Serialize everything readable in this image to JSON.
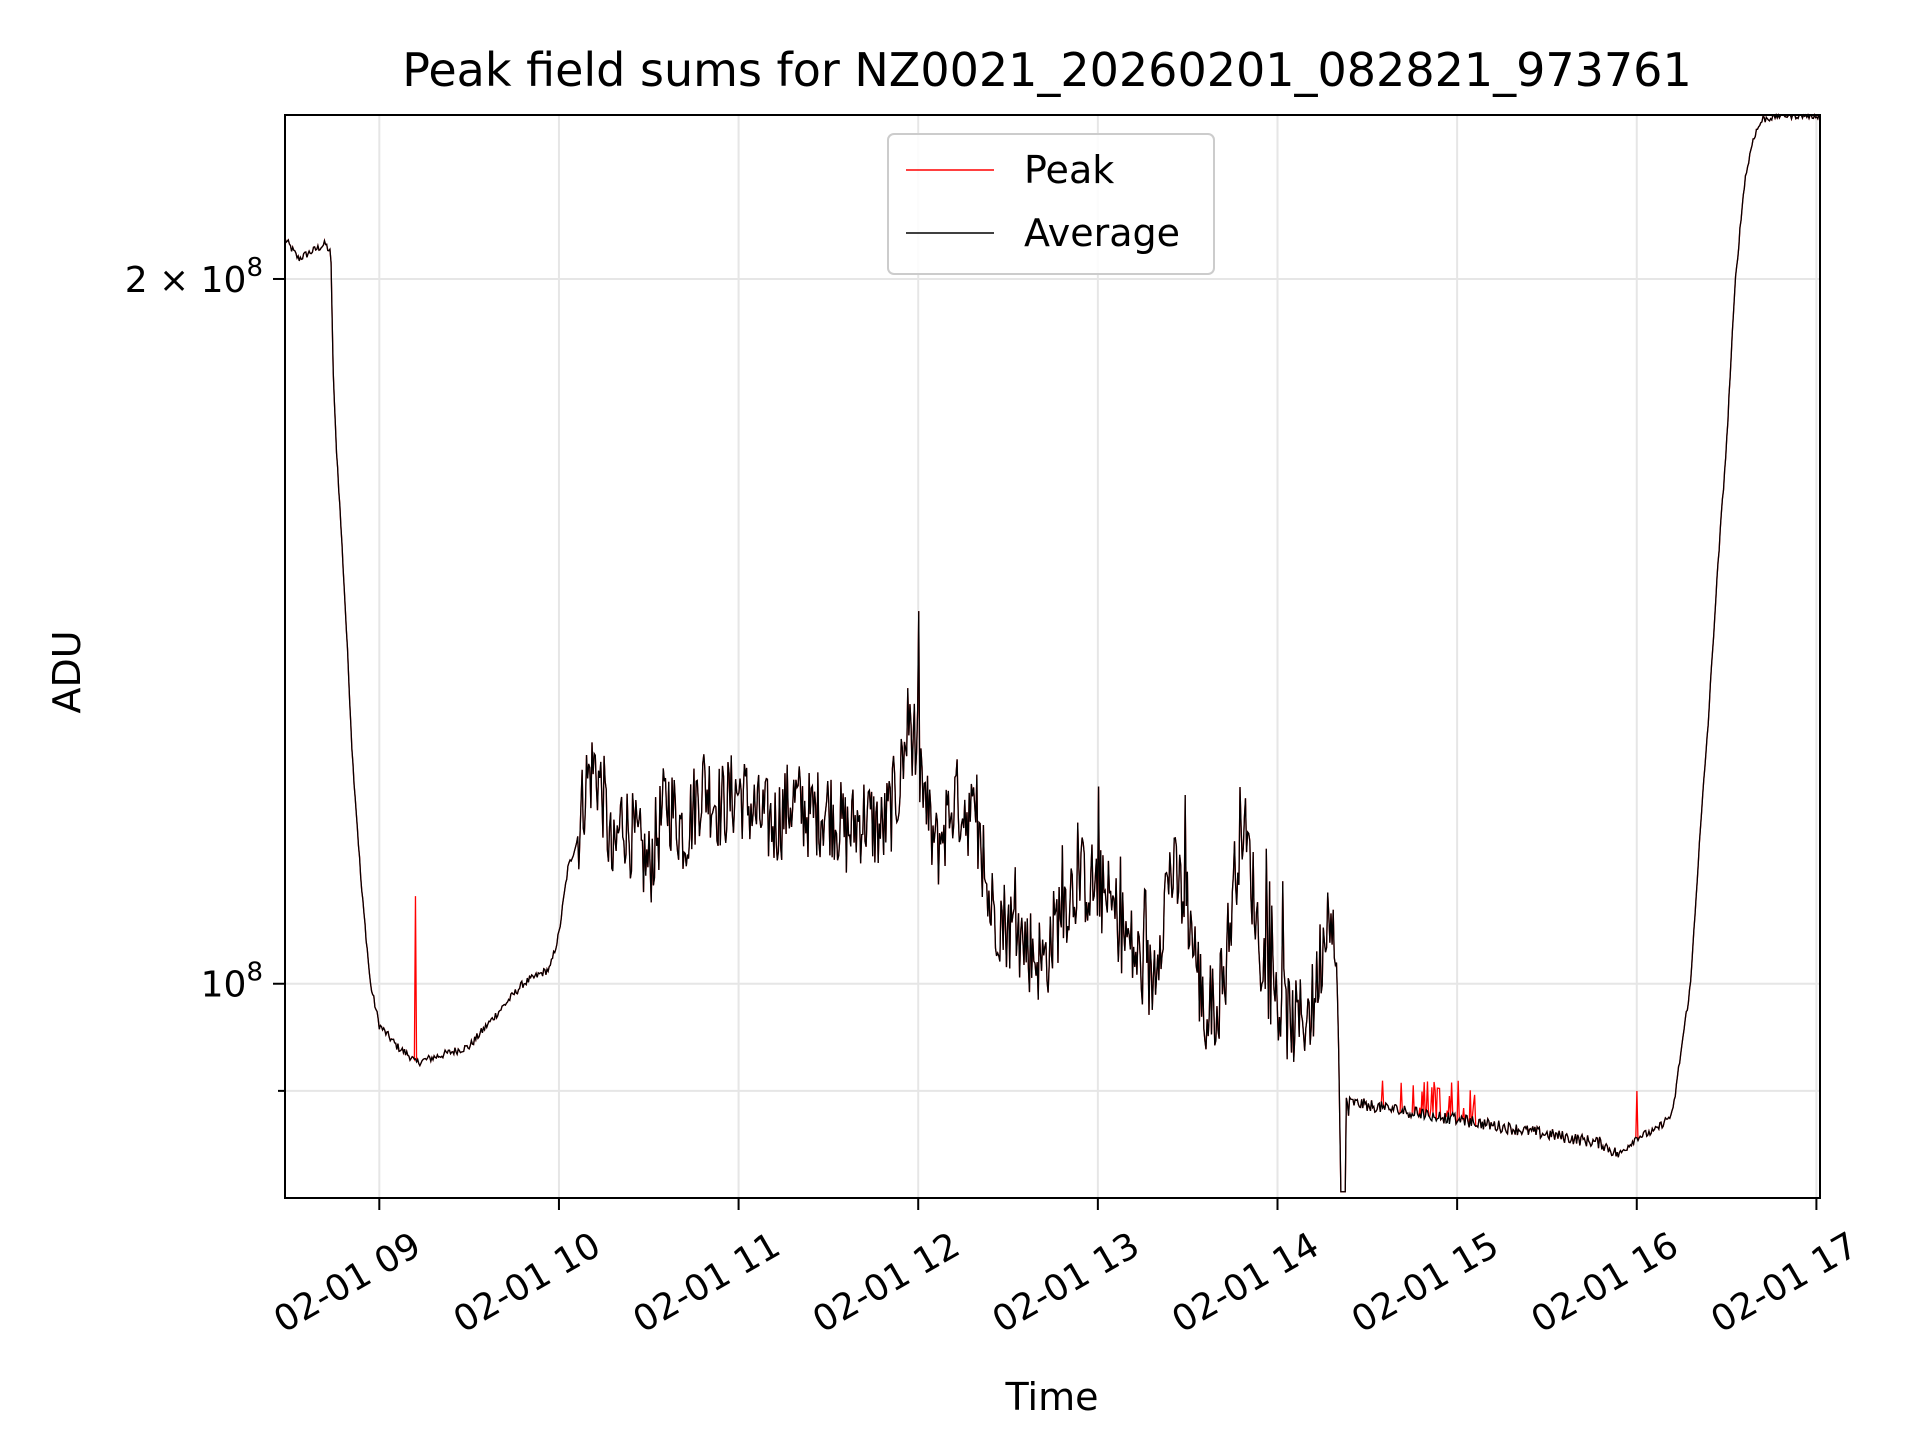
{
  "chart_data": {
    "type": "line",
    "title": "Peak field sums for NZ0021_20260201_082821_973761",
    "xlabel": "Time",
    "ylabel": "ADU",
    "x_unit": "hours",
    "xlim": [
      8.475,
      17.02
    ],
    "ylim": [
      81000000,
      235000000
    ],
    "y_scale": "log",
    "x_ticks": [
      {
        "value": 9,
        "label": "02-01 09"
      },
      {
        "value": 10,
        "label": "02-01 10"
      },
      {
        "value": 11,
        "label": "02-01 11"
      },
      {
        "value": 12,
        "label": "02-01 12"
      },
      {
        "value": 13,
        "label": "02-01 13"
      },
      {
        "value": 14,
        "label": "02-01 14"
      },
      {
        "value": 15,
        "label": "02-01 15"
      },
      {
        "value": 16,
        "label": "02-01 16"
      },
      {
        "value": 17,
        "label": "02-01 17"
      }
    ],
    "y_ticks_labeled": [
      {
        "value": 200000000,
        "label_base": "2 × 10",
        "label_exp": "8"
      },
      {
        "value": 100000000,
        "label_base": "10",
        "label_exp": "8"
      }
    ],
    "y_ticks_minor": [
      90000000
    ],
    "grid": true,
    "legend_position": "top-center",
    "series": [
      {
        "name": "Peak",
        "color": "#ff0000"
      },
      {
        "name": "Average",
        "color": "#000000"
      }
    ],
    "anchor_points": {
      "x": [
        8.475,
        8.55,
        8.65,
        8.7,
        8.73,
        8.745,
        8.76,
        8.8,
        8.85,
        8.9,
        8.95,
        9.0,
        9.1,
        9.18,
        9.2,
        9.3,
        9.4,
        9.5,
        9.6,
        9.7,
        9.8,
        9.9,
        9.95,
        10.0,
        10.05,
        10.1,
        10.15,
        10.2,
        10.25,
        10.3,
        10.35,
        10.4,
        10.5,
        10.6,
        10.7,
        10.8,
        10.9,
        11.0,
        11.1,
        11.2,
        11.3,
        11.4,
        11.5,
        11.6,
        11.7,
        11.8,
        11.9,
        11.95,
        12.0,
        12.05,
        12.1,
        12.2,
        12.3,
        12.4,
        12.5,
        12.6,
        12.7,
        12.8,
        12.9,
        13.0,
        13.1,
        13.2,
        13.3,
        13.4,
        13.5,
        13.6,
        13.7,
        13.8,
        13.85,
        13.9,
        14.0,
        14.1,
        14.2,
        14.25,
        14.3,
        14.35,
        14.4,
        14.6,
        14.8,
        15.0,
        15.2,
        15.4,
        15.6,
        15.8,
        15.9,
        16.0,
        16.1,
        16.2,
        16.3,
        16.4,
        16.5,
        16.55,
        16.6,
        16.65,
        16.7,
        16.8,
        16.9,
        17.02
      ],
      "y_mhz": [
        208,
        204,
        206,
        207,
        205,
        180,
        170,
        150,
        125,
        110,
        100,
        96,
        94,
        93,
        92.5,
        93,
        93.5,
        94,
        96,
        98,
        100,
        101,
        101.5,
        105,
        112,
        115,
        122,
        124,
        120,
        112,
        118,
        116,
        112,
        120,
        116,
        122,
        119,
        121,
        118,
        117,
        120,
        118,
        119,
        116,
        118,
        116,
        122,
        130,
        125,
        118,
        114,
        120,
        118,
        108,
        106,
        104,
        102,
        108,
        111,
        110,
        107,
        103,
        100,
        112,
        108,
        96,
        100,
        118,
        112,
        104,
        98,
        96,
        98,
        104,
        110,
        90,
        89,
        88.5,
        88,
        87.5,
        87,
        86.5,
        86,
        85.5,
        84.5,
        86,
        86.5,
        88,
        100,
        130,
        170,
        200,
        220,
        230,
        234,
        235,
        235,
        235
      ]
    }
  }
}
